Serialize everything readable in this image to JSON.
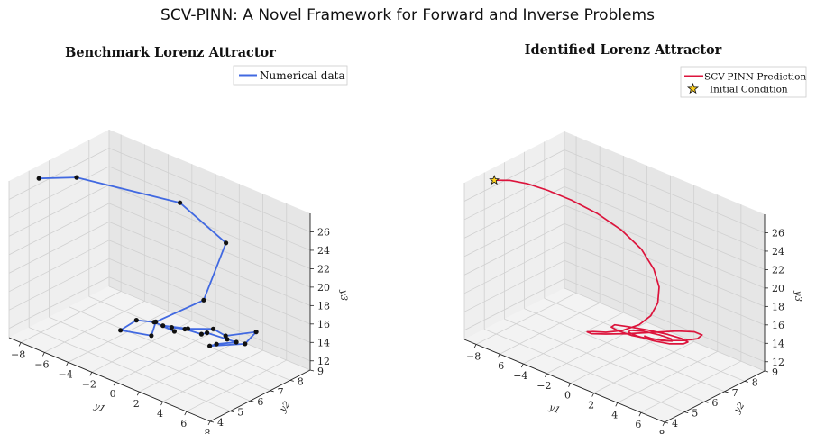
{
  "figure": {
    "suptitle": "SCV-PINN: A Novel Framework for Forward and Inverse Problems"
  },
  "colors": {
    "numerical": "#4169e1",
    "prediction": "#dc143c",
    "marker": "#111111",
    "star": "#ffd21f",
    "pane_left": "#efefef",
    "pane_right": "#e6e6e6",
    "pane_floor": "#f3f3f3",
    "grid": "#d0d0d0"
  },
  "chart_data": [
    {
      "type": "line3d",
      "title": "Benchmark Lorenz Attractor",
      "xlabel": "y1",
      "ylabel": "y2",
      "zlabel": "y3",
      "xlim": [
        -9,
        8
      ],
      "ylim": [
        4,
        9
      ],
      "zlim": [
        11,
        28
      ],
      "xticks": [
        -8,
        -6,
        -4,
        -2,
        0,
        2,
        4,
        6,
        8
      ],
      "yticks": [
        4,
        5,
        6,
        7,
        8,
        9
      ],
      "zticks": [
        12,
        14,
        16,
        18,
        20,
        22,
        24,
        26
      ],
      "grid": true,
      "legend_position": "top-right",
      "series": [
        {
          "name": "Numerical data",
          "markers": true,
          "points": [
            [
              -8.5,
              5.2,
              27.2
            ],
            [
              -6.5,
              5.9,
              27.6
            ],
            [
              -0.3,
              7.4,
              26.5
            ],
            [
              2.4,
              8.1,
              22.8
            ],
            [
              1.2,
              7.7,
              16.4
            ],
            [
              -1.5,
              6.9,
              13.5
            ],
            [
              -1.7,
              6.8,
              12.0
            ],
            [
              -3.3,
              6.2,
              12.4
            ],
            [
              -2.8,
              6.7,
              13.2
            ],
            [
              -1.8,
              7.0,
              13.2
            ],
            [
              -0.6,
              7.3,
              12.5
            ],
            [
              -1.4,
              7.2,
              12.8
            ],
            [
              0.2,
              7.5,
              13.0
            ],
            [
              1.5,
              8.0,
              13.1
            ],
            [
              2.2,
              8.2,
              12.5
            ],
            [
              3.6,
              8.9,
              12.9
            ],
            [
              3.0,
              8.7,
              11.5
            ],
            [
              1.2,
              8.0,
              11.1
            ],
            [
              1.6,
              8.1,
              11.4
            ],
            [
              2.6,
              8.5,
              11.7
            ],
            [
              2.0,
              8.4,
              11.8
            ],
            [
              0.8,
              8.1,
              12.2
            ],
            [
              0.5,
              8.0,
              12.0
            ],
            [
              -0.4,
              7.7,
              12.4
            ],
            [
              -1.0,
              7.4,
              12.6
            ]
          ]
        }
      ]
    },
    {
      "type": "line3d",
      "title": "Identified Lorenz Attractor",
      "xlabel": "y1",
      "ylabel": "y2",
      "zlabel": "y3",
      "xlim": [
        -9,
        8
      ],
      "ylim": [
        4,
        9
      ],
      "zlim": [
        11,
        28
      ],
      "xticks": [
        -8,
        -6,
        -4,
        -2,
        0,
        2,
        4,
        6,
        8
      ],
      "yticks": [
        4,
        5,
        6,
        7,
        8,
        9
      ],
      "zticks": [
        12,
        14,
        16,
        18,
        20,
        22,
        24,
        26
      ],
      "grid": true,
      "legend_position": "top-right",
      "series": [
        {
          "name": "SCV-PINN Prediction",
          "points": [
            [
              -8.5,
              5.2,
              27.2
            ],
            [
              -7.4,
              5.35,
              27.6
            ],
            [
              -6.2,
              5.5,
              27.7
            ],
            [
              -4.8,
              5.7,
              27.5
            ],
            [
              -3.2,
              5.95,
              27.0
            ],
            [
              -1.5,
              6.25,
              26.1
            ],
            [
              0.0,
              6.55,
              24.8
            ],
            [
              1.2,
              6.85,
              23.0
            ],
            [
              1.9,
              7.05,
              21.0
            ],
            [
              2.1,
              7.2,
              19.0
            ],
            [
              1.9,
              7.25,
              17.1
            ],
            [
              1.3,
              7.25,
              15.4
            ],
            [
              0.4,
              7.2,
              14.0
            ],
            [
              -0.8,
              7.05,
              12.9
            ],
            [
              -2.0,
              6.95,
              12.2
            ],
            [
              -3.0,
              6.9,
              11.8
            ],
            [
              -3.5,
              6.9,
              11.5
            ],
            [
              -3.3,
              7.0,
              11.3
            ],
            [
              -2.5,
              7.25,
              11.4
            ],
            [
              -1.2,
              7.55,
              11.8
            ],
            [
              0.4,
              7.9,
              12.4
            ],
            [
              1.8,
              8.25,
              12.9
            ],
            [
              2.8,
              8.55,
              13.0
            ],
            [
              3.2,
              8.7,
              12.7
            ],
            [
              2.9,
              8.65,
              12.2
            ],
            [
              2.1,
              8.45,
              11.8
            ],
            [
              1.0,
              8.2,
              11.5
            ],
            [
              -0.1,
              7.95,
              11.4
            ],
            [
              -1.1,
              7.7,
              11.5
            ],
            [
              -1.9,
              7.5,
              11.8
            ],
            [
              -2.3,
              7.4,
              12.1
            ],
            [
              -2.1,
              7.45,
              12.4
            ],
            [
              -1.2,
              7.6,
              12.5
            ],
            [
              0.0,
              7.85,
              12.5
            ],
            [
              1.2,
              8.1,
              12.4
            ],
            [
              2.1,
              8.3,
              12.2
            ],
            [
              2.5,
              8.4,
              11.9
            ],
            [
              2.2,
              8.35,
              11.6
            ],
            [
              1.4,
              8.15,
              11.4
            ],
            [
              0.4,
              7.95,
              11.4
            ],
            [
              -0.6,
              7.75,
              11.6
            ],
            [
              -1.2,
              7.6,
              11.9
            ],
            [
              -1.1,
              7.65,
              12.1
            ],
            [
              -0.3,
              7.85,
              12.2
            ],
            [
              0.7,
              8.05,
              12.1
            ],
            [
              1.4,
              8.2,
              11.9
            ],
            [
              1.5,
              8.2,
              11.7
            ],
            [
              0.9,
              8.05,
              11.6
            ],
            [
              0.2,
              7.9,
              11.65
            ],
            [
              -0.2,
              7.8,
              11.8
            ]
          ]
        },
        {
          "name": "Initial Condition",
          "marker": "star",
          "points": [
            [
              -8.5,
              5.2,
              27.2
            ]
          ]
        }
      ]
    }
  ]
}
